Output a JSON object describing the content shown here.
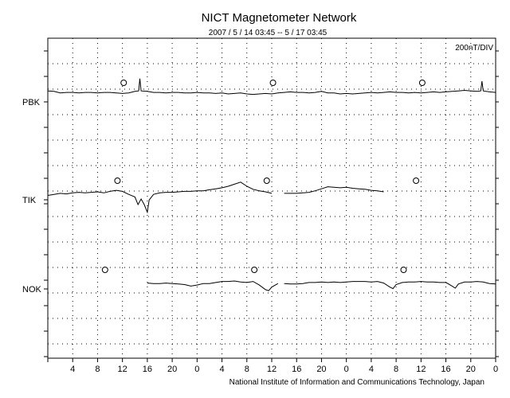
{
  "chart_data": {
    "type": "line",
    "title": "NICT Magnetometer Network",
    "subtitle": "2007 / 5 / 14   03:45 --  5 / 17   03:45",
    "scale_label": "200nT/DIV",
    "footer": "National Institute of Information and Communications Technology, Japan",
    "x_tick_labels": [
      "4",
      "8",
      "12",
      "16",
      "20",
      "0",
      "4",
      "8",
      "12",
      "16",
      "20",
      "0",
      "4",
      "8",
      "12",
      "16",
      "20",
      "0"
    ],
    "x_tick_hours": [
      4,
      8,
      12,
      16,
      20,
      24,
      28,
      32,
      36,
      40,
      44,
      48,
      52,
      56,
      60,
      64,
      68,
      72
    ],
    "xlim_hours_after_start": [
      0,
      72
    ],
    "grid": true,
    "series": [
      {
        "name": "PBK",
        "midnight_markers_hours": [
          12.2,
          36.2,
          60.2
        ],
        "points": [
          [
            0,
            0.12
          ],
          [
            1,
            0.1
          ],
          [
            2,
            0.04
          ],
          [
            3,
            0.06
          ],
          [
            4,
            0.06
          ],
          [
            5,
            0.04
          ],
          [
            6,
            0.06
          ],
          [
            7,
            0.06
          ],
          [
            8,
            0.04
          ],
          [
            9,
            0.06
          ],
          [
            10,
            0.06
          ],
          [
            11,
            0.04
          ],
          [
            12,
            0.02
          ],
          [
            13,
            0.04
          ],
          [
            14,
            0.1
          ],
          [
            14.6,
            0.12
          ],
          [
            14.8,
            0.6
          ],
          [
            15,
            0.12
          ],
          [
            16,
            0.1
          ],
          [
            17,
            0.06
          ],
          [
            18,
            0.06
          ],
          [
            19,
            0.04
          ],
          [
            20,
            0.06
          ],
          [
            21,
            0.06
          ],
          [
            22,
            0.04
          ],
          [
            23,
            0.04
          ],
          [
            24,
            0.06
          ],
          [
            25,
            0.04
          ],
          [
            26,
            0.04
          ],
          [
            27,
            0.02
          ],
          [
            28,
            0.04
          ],
          [
            29,
            0.0
          ],
          [
            30,
            0.02
          ],
          [
            31,
            0.04
          ],
          [
            32,
            0.0
          ],
          [
            33,
            -0.02
          ],
          [
            34,
            0.0
          ],
          [
            35,
            0.02
          ],
          [
            36,
            0.0
          ],
          [
            37,
            0.04
          ],
          [
            38,
            0.06
          ],
          [
            39,
            0.08
          ],
          [
            40,
            0.06
          ],
          [
            41,
            0.06
          ],
          [
            42,
            0.04
          ],
          [
            43,
            0.06
          ],
          [
            44,
            0.1
          ],
          [
            45,
            0.04
          ],
          [
            46,
            0.04
          ],
          [
            47,
            0.0
          ],
          [
            48,
            0.02
          ],
          [
            49,
            0.0
          ],
          [
            50,
            0.02
          ],
          [
            51,
            0.04
          ],
          [
            52,
            0.06
          ],
          [
            53,
            0.04
          ],
          [
            54,
            0.06
          ],
          [
            55,
            0.08
          ],
          [
            56,
            0.06
          ],
          [
            57,
            0.06
          ],
          [
            58,
            0.04
          ],
          [
            59,
            0.06
          ],
          [
            60,
            0.04
          ],
          [
            61,
            0.06
          ],
          [
            62,
            0.08
          ],
          [
            63,
            0.06
          ],
          [
            64,
            0.08
          ],
          [
            65,
            0.1
          ],
          [
            66,
            0.12
          ],
          [
            67,
            0.14
          ],
          [
            68,
            0.12
          ],
          [
            69,
            0.1
          ],
          [
            69.6,
            0.12
          ],
          [
            69.8,
            0.5
          ],
          [
            70,
            0.12
          ],
          [
            71,
            0.08
          ],
          [
            72,
            0.06
          ]
        ]
      },
      {
        "name": "TIK",
        "midnight_markers_hours": [
          11.2,
          35.2,
          59.2
        ],
        "segments": [
          [
            [
              0,
              -0.14
            ],
            [
              1,
              -0.1
            ],
            [
              2,
              -0.06
            ],
            [
              3,
              -0.08
            ],
            [
              4,
              -0.04
            ],
            [
              5,
              -0.02
            ],
            [
              6,
              -0.04
            ],
            [
              7,
              -0.02
            ],
            [
              8,
              0.0
            ],
            [
              9,
              -0.04
            ],
            [
              10,
              0.02
            ],
            [
              11,
              0.06
            ],
            [
              12,
              0.02
            ],
            [
              13,
              -0.1
            ],
            [
              14,
              -0.2
            ],
            [
              14.5,
              -0.5
            ],
            [
              15,
              -0.28
            ],
            [
              15.5,
              -0.5
            ],
            [
              16,
              -0.8
            ],
            [
              16.3,
              -0.32
            ],
            [
              17,
              -0.1
            ],
            [
              18,
              -0.04
            ],
            [
              19,
              -0.02
            ],
            [
              20,
              -0.02
            ],
            [
              21,
              0.0
            ],
            [
              22,
              0.02
            ],
            [
              23,
              0.02
            ],
            [
              24,
              0.04
            ],
            [
              25,
              0.04
            ],
            [
              26,
              0.08
            ],
            [
              27,
              0.12
            ],
            [
              28,
              0.16
            ],
            [
              29,
              0.22
            ],
            [
              30,
              0.3
            ],
            [
              31,
              0.38
            ],
            [
              32,
              0.22
            ],
            [
              33,
              0.1
            ],
            [
              34,
              0.04
            ],
            [
              35,
              0.0
            ],
            [
              36,
              -0.06
            ]
          ],
          [
            [
              38,
              -0.06
            ],
            [
              39,
              -0.06
            ],
            [
              40,
              -0.06
            ],
            [
              41,
              -0.04
            ],
            [
              42,
              -0.02
            ],
            [
              43,
              0.04
            ],
            [
              44,
              0.12
            ],
            [
              45,
              0.2
            ],
            [
              46,
              0.18
            ],
            [
              47,
              0.16
            ],
            [
              48,
              0.18
            ],
            [
              49,
              0.14
            ],
            [
              50,
              0.12
            ],
            [
              51,
              0.1
            ],
            [
              52,
              0.06
            ],
            [
              53,
              0.04
            ],
            [
              54,
              0.0
            ]
          ]
        ]
      },
      {
        "name": "NOK",
        "midnight_markers_hours": [
          9.2,
          33.2,
          57.2
        ],
        "segments": [
          [
            [
              16,
              -0.08
            ],
            [
              17,
              -0.1
            ],
            [
              18,
              -0.1
            ],
            [
              19,
              -0.08
            ],
            [
              20,
              -0.1
            ],
            [
              21,
              -0.12
            ],
            [
              22,
              -0.14
            ],
            [
              23,
              -0.2
            ],
            [
              24,
              -0.16
            ],
            [
              25,
              -0.1
            ],
            [
              26,
              -0.1
            ],
            [
              27,
              -0.06
            ],
            [
              28,
              -0.02
            ],
            [
              29,
              -0.02
            ],
            [
              30,
              0.0
            ],
            [
              31,
              -0.04
            ],
            [
              32,
              -0.06
            ],
            [
              33,
              -0.02
            ],
            [
              34,
              -0.16
            ],
            [
              35,
              -0.34
            ],
            [
              35.5,
              -0.38
            ],
            [
              36,
              -0.24
            ],
            [
              37,
              -0.1
            ]
          ],
          [
            [
              38,
              -0.1
            ],
            [
              39,
              -0.12
            ],
            [
              40,
              -0.12
            ],
            [
              41,
              -0.1
            ],
            [
              42,
              -0.06
            ],
            [
              43,
              -0.06
            ],
            [
              44,
              -0.04
            ],
            [
              45,
              -0.06
            ],
            [
              46,
              -0.04
            ],
            [
              47,
              -0.06
            ],
            [
              48,
              -0.04
            ],
            [
              49,
              -0.02
            ],
            [
              50,
              -0.02
            ],
            [
              51,
              -0.02
            ],
            [
              52,
              -0.04
            ],
            [
              53,
              -0.02
            ],
            [
              54,
              -0.08
            ],
            [
              55,
              -0.24
            ],
            [
              55.5,
              -0.3
            ],
            [
              56,
              -0.14
            ],
            [
              57,
              -0.06
            ],
            [
              58,
              -0.04
            ],
            [
              59,
              -0.04
            ],
            [
              60,
              -0.02
            ],
            [
              61,
              -0.04
            ],
            [
              62,
              -0.04
            ],
            [
              63,
              -0.06
            ],
            [
              64,
              -0.06
            ],
            [
              65,
              -0.2
            ],
            [
              65.5,
              -0.28
            ],
            [
              66,
              -0.12
            ],
            [
              67,
              -0.04
            ],
            [
              68,
              -0.04
            ],
            [
              69,
              -0.02
            ],
            [
              70,
              -0.04
            ],
            [
              71,
              -0.1
            ],
            [
              72,
              -0.12
            ]
          ]
        ]
      }
    ],
    "y_unit": "DIV (1 DIV = 200 nT), relative to station baseline"
  }
}
